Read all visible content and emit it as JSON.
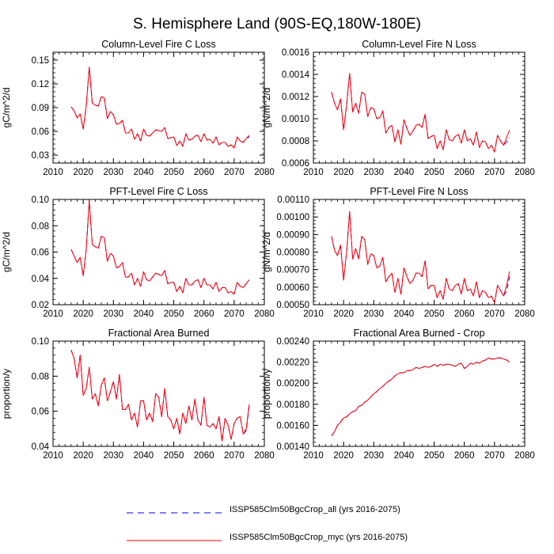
{
  "figure": {
    "title": "S. Hemisphere Land (90S-EQ,180W-180E)"
  },
  "legend": [
    {
      "name": "ISSP585Clm50BgcCrop_all (yrs 2016-2075)",
      "color": "#0000ff",
      "style": "dashed"
    },
    {
      "name": "ISSP585Clm50BgcCrop_myc (yrs 2016-2075)",
      "color": "#ff0000",
      "style": "solid"
    }
  ],
  "chart_data": [
    {
      "type": "line",
      "title": "Column-Level Fire C Loss",
      "ylabel": "gC/m^2/d",
      "xlim": [
        2010,
        2080
      ],
      "xticks": [
        "2010",
        "2020",
        "2030",
        "2040",
        "2050",
        "2060",
        "2070",
        "2080"
      ],
      "ylim": [
        0.02,
        0.16
      ],
      "yticks": [
        "0.03",
        "0.06",
        "0.09",
        "0.12",
        "0.15"
      ],
      "x_start": 2016,
      "series": [
        {
          "name": "ISSP585Clm50BgcCrop_all (yrs 2016-2075)",
          "values": [
            0.091,
            0.086,
            0.077,
            0.082,
            0.063,
            0.092,
            0.141,
            0.096,
            0.093,
            0.092,
            0.104,
            0.102,
            0.076,
            0.085,
            0.081,
            0.069,
            0.07,
            0.074,
            0.058,
            0.058,
            0.063,
            0.05,
            0.057,
            0.048,
            0.063,
            0.055,
            0.054,
            0.058,
            0.062,
            0.061,
            0.06,
            0.065,
            0.051,
            0.052,
            0.053,
            0.042,
            0.048,
            0.041,
            0.057,
            0.049,
            0.05,
            0.054,
            0.055,
            0.047,
            0.057,
            0.049,
            0.05,
            0.045,
            0.053,
            0.043,
            0.046,
            0.046,
            0.041,
            0.043,
            0.039,
            0.053,
            0.048,
            0.046,
            0.051,
            0.053
          ]
        },
        {
          "name": "ISSP585Clm50BgcCrop_myc (yrs 2016-2075)",
          "values": [
            0.091,
            0.086,
            0.077,
            0.082,
            0.063,
            0.092,
            0.141,
            0.096,
            0.093,
            0.092,
            0.104,
            0.102,
            0.076,
            0.085,
            0.081,
            0.069,
            0.07,
            0.074,
            0.058,
            0.058,
            0.063,
            0.05,
            0.057,
            0.048,
            0.063,
            0.055,
            0.054,
            0.058,
            0.062,
            0.061,
            0.06,
            0.065,
            0.051,
            0.052,
            0.053,
            0.042,
            0.048,
            0.041,
            0.057,
            0.049,
            0.05,
            0.054,
            0.055,
            0.047,
            0.057,
            0.049,
            0.05,
            0.045,
            0.053,
            0.043,
            0.046,
            0.046,
            0.041,
            0.043,
            0.039,
            0.053,
            0.048,
            0.046,
            0.051,
            0.055
          ]
        }
      ]
    },
    {
      "type": "line",
      "title": "Column-Level Fire N Loss",
      "ylabel": "gN/m^2/d",
      "xlim": [
        2010,
        2080
      ],
      "xticks": [
        "2010",
        "2020",
        "2030",
        "2040",
        "2050",
        "2060",
        "2070",
        "2080"
      ],
      "ylim": [
        0.0006,
        0.0016
      ],
      "yticks": [
        "0.0006",
        "0.0008",
        "0.0010",
        "0.0012",
        "0.0014",
        "0.0016"
      ],
      "x_start": 2016,
      "series": [
        {
          "name": "ISSP585Clm50BgcCrop_all (yrs 2016-2075)",
          "values": [
            0.00124,
            0.00114,
            0.00108,
            0.00118,
            0.0009,
            0.00112,
            0.00141,
            0.00106,
            0.00114,
            0.00105,
            0.00124,
            0.00122,
            0.00102,
            0.0011,
            0.00109,
            0.001,
            0.00101,
            0.00107,
            0.00087,
            0.00092,
            0.00094,
            0.00079,
            0.0009,
            0.00077,
            0.00099,
            0.00091,
            0.00085,
            0.00089,
            0.00094,
            0.00095,
            0.00092,
            0.00104,
            0.00082,
            0.00084,
            0.00085,
            0.00073,
            0.0008,
            0.00072,
            0.0009,
            0.00081,
            0.0008,
            0.00084,
            0.00086,
            0.00078,
            0.0009,
            0.0008,
            0.00082,
            0.00076,
            0.00088,
            0.00074,
            0.0008,
            0.00079,
            0.00073,
            0.00076,
            0.0007,
            0.00085,
            0.0008,
            0.00076,
            0.00079,
            0.00083
          ]
        },
        {
          "name": "ISSP585Clm50BgcCrop_myc (yrs 2016-2075)",
          "values": [
            0.00124,
            0.00114,
            0.00108,
            0.00118,
            0.0009,
            0.00112,
            0.00141,
            0.00106,
            0.00114,
            0.00105,
            0.00124,
            0.00122,
            0.00102,
            0.0011,
            0.00109,
            0.001,
            0.00101,
            0.00107,
            0.00087,
            0.00092,
            0.00094,
            0.00079,
            0.0009,
            0.00077,
            0.00099,
            0.00091,
            0.00085,
            0.00089,
            0.00094,
            0.00095,
            0.00092,
            0.00104,
            0.00082,
            0.00084,
            0.00085,
            0.00073,
            0.0008,
            0.00072,
            0.0009,
            0.00081,
            0.0008,
            0.00084,
            0.00086,
            0.00078,
            0.0009,
            0.0008,
            0.00082,
            0.00076,
            0.00088,
            0.00074,
            0.0008,
            0.00079,
            0.00073,
            0.00076,
            0.0007,
            0.00085,
            0.0008,
            0.00076,
            0.00083,
            0.0009
          ]
        }
      ]
    },
    {
      "type": "line",
      "title": "PFT-Level Fire C Loss",
      "ylabel": "gC/m^2/d",
      "xlim": [
        2010,
        2080
      ],
      "xticks": [
        "2010",
        "2020",
        "2030",
        "2040",
        "2050",
        "2060",
        "2070",
        "2080"
      ],
      "ylim": [
        0.02,
        0.1
      ],
      "yticks": [
        "0.02",
        "0.04",
        "0.06",
        "0.08",
        "0.10"
      ],
      "x_start": 2016,
      "series": [
        {
          "name": "ISSP585Clm50BgcCrop_all (yrs 2016-2075)",
          "values": [
            0.062,
            0.057,
            0.052,
            0.056,
            0.042,
            0.062,
            0.099,
            0.066,
            0.064,
            0.063,
            0.072,
            0.071,
            0.053,
            0.059,
            0.057,
            0.048,
            0.049,
            0.052,
            0.041,
            0.041,
            0.044,
            0.035,
            0.04,
            0.034,
            0.045,
            0.039,
            0.038,
            0.041,
            0.044,
            0.043,
            0.042,
            0.046,
            0.036,
            0.037,
            0.037,
            0.03,
            0.034,
            0.029,
            0.04,
            0.035,
            0.035,
            0.038,
            0.039,
            0.033,
            0.04,
            0.035,
            0.035,
            0.032,
            0.037,
            0.03,
            0.033,
            0.033,
            0.029,
            0.03,
            0.028,
            0.037,
            0.034,
            0.033,
            0.036,
            0.037
          ]
        },
        {
          "name": "ISSP585Clm50BgcCrop_myc (yrs 2016-2075)",
          "values": [
            0.062,
            0.057,
            0.052,
            0.056,
            0.042,
            0.062,
            0.099,
            0.066,
            0.064,
            0.063,
            0.072,
            0.071,
            0.053,
            0.059,
            0.057,
            0.048,
            0.049,
            0.052,
            0.041,
            0.041,
            0.044,
            0.035,
            0.04,
            0.034,
            0.045,
            0.039,
            0.038,
            0.041,
            0.044,
            0.043,
            0.042,
            0.046,
            0.036,
            0.037,
            0.037,
            0.03,
            0.034,
            0.029,
            0.04,
            0.035,
            0.035,
            0.038,
            0.039,
            0.033,
            0.04,
            0.035,
            0.035,
            0.032,
            0.037,
            0.03,
            0.033,
            0.033,
            0.029,
            0.03,
            0.028,
            0.037,
            0.034,
            0.033,
            0.036,
            0.039
          ]
        }
      ]
    },
    {
      "type": "line",
      "title": "PFT-Level Fire N Loss",
      "ylabel": "gN/m^2/d",
      "xlim": [
        2010,
        2080
      ],
      "xticks": [
        "2010",
        "2020",
        "2030",
        "2040",
        "2050",
        "2060",
        "2070",
        "2080"
      ],
      "ylim": [
        0.0005,
        0.0011
      ],
      "yticks": [
        "0.00050",
        "0.00060",
        "0.00070",
        "0.00080",
        "0.00090",
        "0.00100",
        "0.00110"
      ],
      "x_start": 2016,
      "series": [
        {
          "name": "ISSP585Clm50BgcCrop_all (yrs 2016-2075)",
          "values": [
            0.00089,
            0.00081,
            0.00078,
            0.00084,
            0.00064,
            0.0008,
            0.00103,
            0.00076,
            0.00082,
            0.00076,
            0.00089,
            0.00087,
            0.00073,
            0.00079,
            0.00078,
            0.00071,
            0.00072,
            0.00077,
            0.00063,
            0.00066,
            0.00068,
            0.00057,
            0.00065,
            0.00056,
            0.00071,
            0.00066,
            0.00062,
            0.00064,
            0.00068,
            0.00068,
            0.00066,
            0.00075,
            0.00059,
            0.00061,
            0.00061,
            0.00054,
            0.00058,
            0.00053,
            0.00065,
            0.00059,
            0.00058,
            0.00061,
            0.00062,
            0.00056,
            0.00065,
            0.00058,
            0.00059,
            0.00055,
            0.00063,
            0.00054,
            0.00058,
            0.00057,
            0.00054,
            0.00055,
            0.00051,
            0.00061,
            0.00058,
            0.00055,
            0.00058,
            0.00066
          ]
        },
        {
          "name": "ISSP585Clm50BgcCrop_myc (yrs 2016-2075)",
          "values": [
            0.00089,
            0.00081,
            0.00078,
            0.00084,
            0.00064,
            0.0008,
            0.00103,
            0.00076,
            0.00082,
            0.00076,
            0.00089,
            0.00087,
            0.00073,
            0.00079,
            0.00078,
            0.00071,
            0.00072,
            0.00077,
            0.00063,
            0.00066,
            0.00068,
            0.00057,
            0.00065,
            0.00056,
            0.00071,
            0.00066,
            0.00062,
            0.00064,
            0.00068,
            0.00068,
            0.00066,
            0.00075,
            0.00059,
            0.00061,
            0.00061,
            0.00054,
            0.00058,
            0.00053,
            0.00065,
            0.00059,
            0.00058,
            0.00061,
            0.00062,
            0.00056,
            0.00065,
            0.00058,
            0.00059,
            0.00055,
            0.00063,
            0.00054,
            0.00058,
            0.00057,
            0.00054,
            0.00055,
            0.00051,
            0.00061,
            0.00058,
            0.00055,
            0.00061,
            0.00069
          ]
        }
      ]
    },
    {
      "type": "line",
      "title": "Fractional Area Burned",
      "ylabel": "proportion/y",
      "xlim": [
        2010,
        2080
      ],
      "xticks": [
        "2010",
        "2020",
        "2030",
        "2040",
        "2050",
        "2060",
        "2070",
        "2080"
      ],
      "ylim": [
        0.04,
        0.1
      ],
      "yticks": [
        "0.04",
        "0.06",
        "0.08",
        "0.10"
      ],
      "x_start": 2016,
      "series": [
        {
          "name": "ISSP585Clm50BgcCrop_all (yrs 2016-2075)",
          "values": [
            0.095,
            0.09,
            0.079,
            0.092,
            0.069,
            0.073,
            0.085,
            0.067,
            0.07,
            0.063,
            0.075,
            0.079,
            0.066,
            0.071,
            0.077,
            0.067,
            0.081,
            0.061,
            0.061,
            0.064,
            0.055,
            0.059,
            0.051,
            0.066,
            0.066,
            0.055,
            0.059,
            0.054,
            0.07,
            0.068,
            0.057,
            0.073,
            0.057,
            0.055,
            0.05,
            0.056,
            0.047,
            0.059,
            0.053,
            0.063,
            0.055,
            0.067,
            0.055,
            0.052,
            0.068,
            0.052,
            0.051,
            0.053,
            0.05,
            0.057,
            0.043,
            0.056,
            0.052,
            0.044,
            0.053,
            0.056,
            0.057,
            0.047,
            0.049,
            0.063
          ]
        },
        {
          "name": "ISSP585Clm50BgcCrop_myc (yrs 2016-2075)",
          "values": [
            0.095,
            0.09,
            0.079,
            0.092,
            0.069,
            0.073,
            0.085,
            0.067,
            0.07,
            0.063,
            0.075,
            0.079,
            0.066,
            0.071,
            0.077,
            0.067,
            0.081,
            0.061,
            0.061,
            0.064,
            0.055,
            0.059,
            0.051,
            0.066,
            0.066,
            0.055,
            0.059,
            0.054,
            0.07,
            0.068,
            0.057,
            0.073,
            0.057,
            0.055,
            0.05,
            0.056,
            0.047,
            0.059,
            0.053,
            0.063,
            0.055,
            0.067,
            0.055,
            0.052,
            0.068,
            0.052,
            0.051,
            0.053,
            0.05,
            0.057,
            0.043,
            0.056,
            0.052,
            0.044,
            0.053,
            0.056,
            0.057,
            0.047,
            0.05,
            0.064
          ]
        }
      ]
    },
    {
      "type": "line",
      "title": "Fractional Area Burned - Crop",
      "ylabel": "proportion/y",
      "xlim": [
        2010,
        2080
      ],
      "xticks": [
        "2010",
        "2020",
        "2030",
        "2040",
        "2050",
        "2060",
        "2070",
        "2080"
      ],
      "ylim": [
        0.0014,
        0.0024
      ],
      "yticks": [
        "0.00140",
        "0.00160",
        "0.00180",
        "0.00200",
        "0.00220",
        "0.00240"
      ],
      "x_start": 2016,
      "series": [
        {
          "name": "ISSP585Clm50BgcCrop_all (yrs 2016-2075)",
          "values": [
            0.0015,
            0.00154,
            0.0016,
            0.00163,
            0.00167,
            0.00168,
            0.00171,
            0.00173,
            0.00174,
            0.00178,
            0.00179,
            0.00182,
            0.00184,
            0.00187,
            0.0019,
            0.00192,
            0.00195,
            0.00197,
            0.002,
            0.00202,
            0.00204,
            0.00207,
            0.00209,
            0.0021,
            0.0021,
            0.00212,
            0.00212,
            0.00213,
            0.00215,
            0.00214,
            0.00215,
            0.00216,
            0.00215,
            0.00216,
            0.00218,
            0.00216,
            0.00218,
            0.00217,
            0.00218,
            0.00218,
            0.00217,
            0.00216,
            0.00218,
            0.00219,
            0.00214,
            0.00216,
            0.00219,
            0.00218,
            0.0022,
            0.00219,
            0.00221,
            0.00222,
            0.00224,
            0.00223,
            0.00223,
            0.00224,
            0.00224,
            0.00223,
            0.00222,
            0.0022
          ]
        },
        {
          "name": "ISSP585Clm50BgcCrop_myc (yrs 2016-2075)",
          "values": [
            0.0015,
            0.00154,
            0.0016,
            0.00163,
            0.00167,
            0.00168,
            0.00171,
            0.00173,
            0.00174,
            0.00178,
            0.00179,
            0.00182,
            0.00184,
            0.00187,
            0.0019,
            0.00192,
            0.00195,
            0.00197,
            0.002,
            0.00202,
            0.00204,
            0.00207,
            0.00209,
            0.0021,
            0.0021,
            0.00212,
            0.00212,
            0.00213,
            0.00215,
            0.00214,
            0.00215,
            0.00216,
            0.00215,
            0.00216,
            0.00218,
            0.00216,
            0.00218,
            0.00217,
            0.00218,
            0.00218,
            0.00217,
            0.00216,
            0.00218,
            0.00219,
            0.00214,
            0.00216,
            0.00219,
            0.00218,
            0.0022,
            0.00219,
            0.00221,
            0.00222,
            0.00224,
            0.00223,
            0.00223,
            0.00224,
            0.00224,
            0.00223,
            0.00222,
            0.0022
          ]
        }
      ]
    }
  ]
}
